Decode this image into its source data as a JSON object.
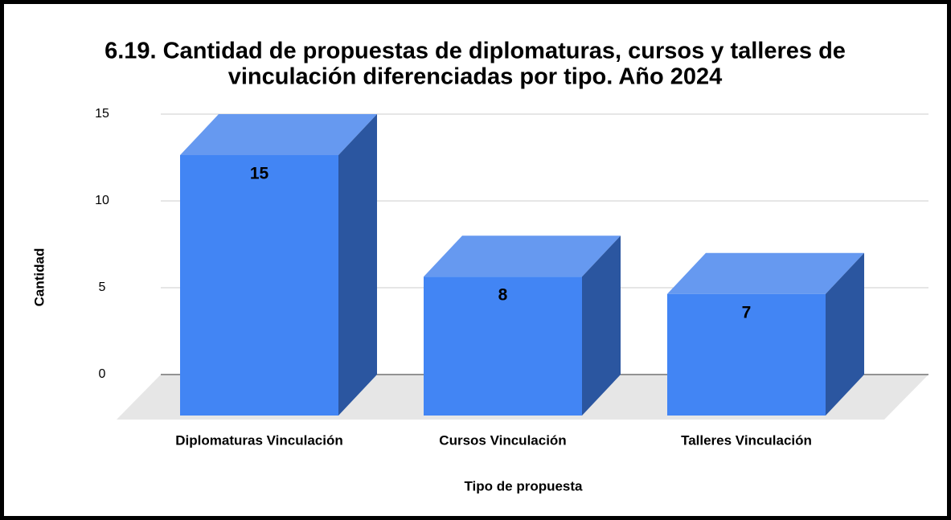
{
  "chart_data": {
    "type": "bar3d",
    "title": [
      "6.19. Cantidad de propuestas de diplomaturas, cursos y talleres de",
      "vinculación diferenciadas por tipo. Año 2024"
    ],
    "x_label": "Tipo de propuesta",
    "y_label": "Cantidad",
    "categories": [
      "Diplomaturas Vinculación",
      "Cursos Vinculación",
      "Talleres Vinculación"
    ],
    "values": [
      15,
      8,
      7
    ],
    "color": "#4285f4",
    "ylim": [
      0,
      15
    ],
    "yticks": [
      0,
      5,
      10,
      15
    ],
    "grid": true
  }
}
